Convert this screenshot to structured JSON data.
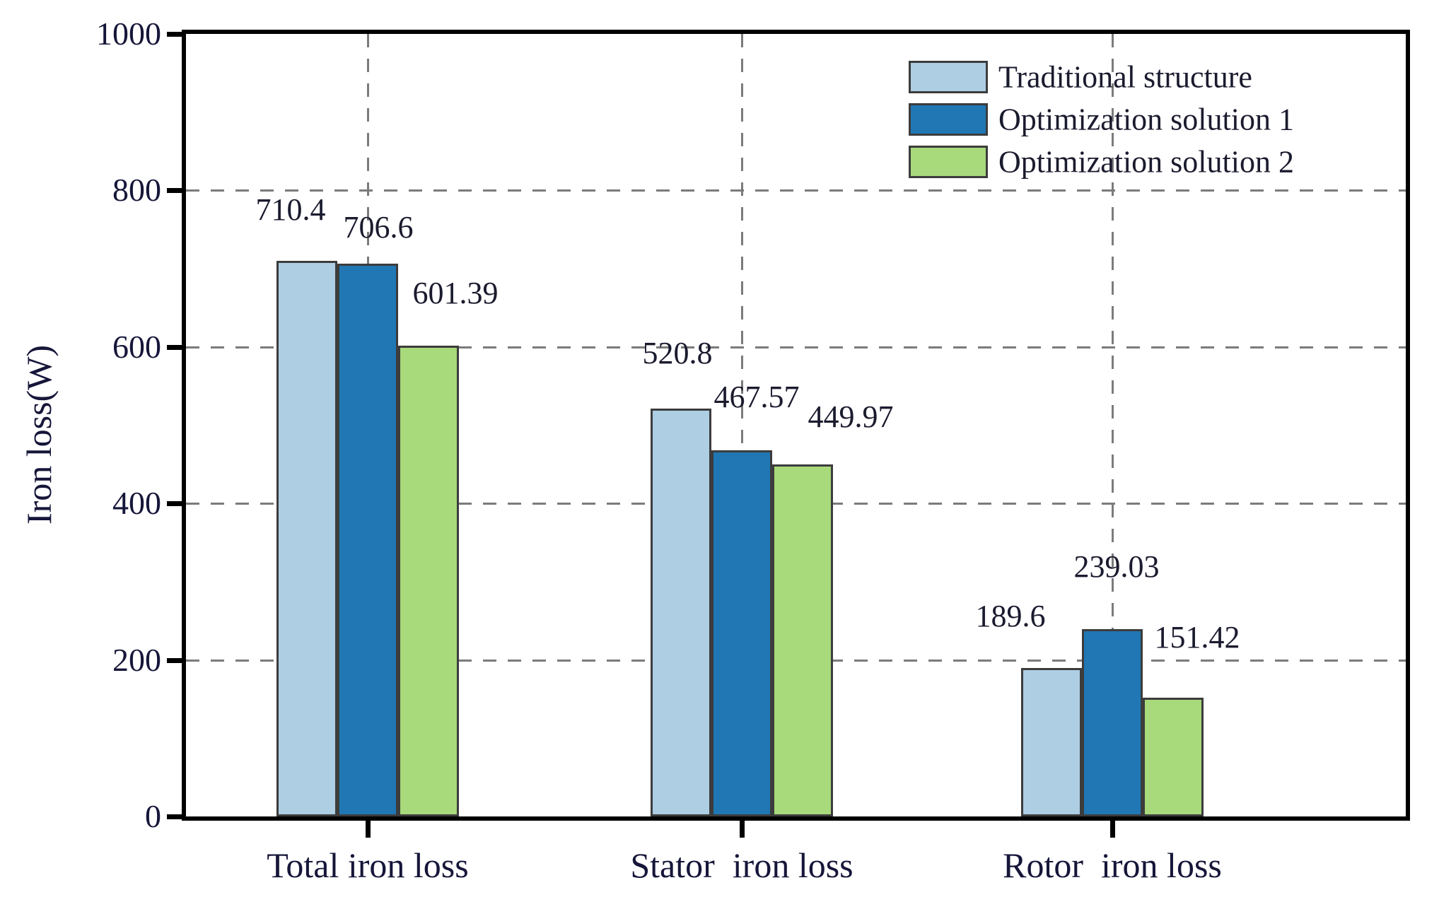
{
  "chart_data": {
    "type": "bar",
    "title": "",
    "xlabel": "",
    "ylabel": "Iron loss(W)",
    "ylim": [
      0,
      1000
    ],
    "yticks": [
      0,
      200,
      400,
      600,
      800,
      1000
    ],
    "grid": "dashed",
    "legend_position": "top-right",
    "categories": [
      "Total iron loss",
      "Stator  iron loss",
      "Rotor  iron loss"
    ],
    "series": [
      {
        "name": "Traditional structure",
        "color": "#AECEE3",
        "values": [
          710.4,
          520.8,
          189.6
        ]
      },
      {
        "name": "Optimization solution 1",
        "color": "#2077B4",
        "values": [
          706.6,
          467.57,
          239.03
        ]
      },
      {
        "name": "Optimization solution 2",
        "color": "#A8D97B",
        "values": [
          601.39,
          449.97,
          151.42
        ]
      }
    ],
    "value_labels": [
      "710.4",
      "706.6",
      "601.39",
      "520.8",
      "467.57",
      "449.97",
      "189.6",
      "239.03",
      "151.42"
    ]
  },
  "colors": {
    "grid": "#7b7b7b",
    "axis_frame": "#000000",
    "bar_border": "#3c3c3c",
    "text": "#16163a"
  }
}
